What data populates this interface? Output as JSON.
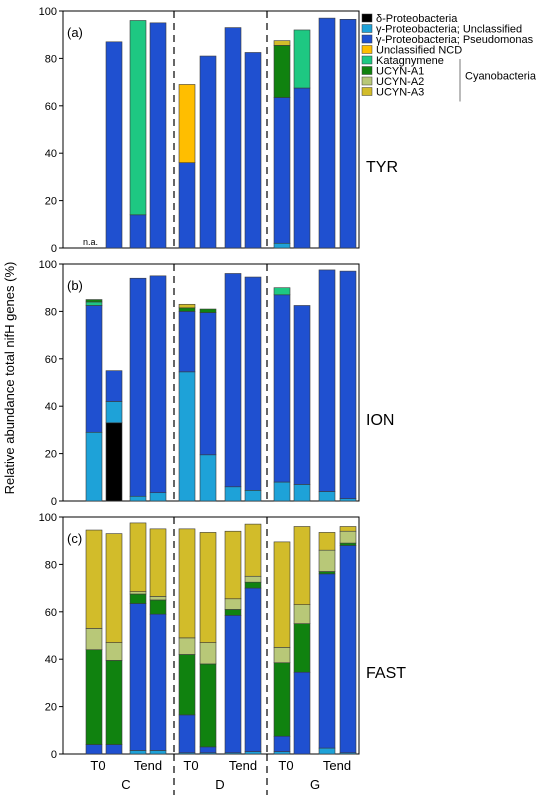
{
  "chart_data": {
    "type": "bar",
    "stacked": true,
    "ylabel": "Relative abundance total nifH genes (%)",
    "ylim": [
      0,
      100
    ],
    "yticks": [
      0,
      20,
      40,
      60,
      80,
      100
    ],
    "groups": [
      {
        "name": "C",
        "timepoints": [
          "T0",
          "Tend"
        ]
      },
      {
        "name": "D",
        "timepoints": [
          "T0",
          "Tend"
        ]
      },
      {
        "name": "G",
        "timepoints": [
          "T0",
          "Tend"
        ]
      }
    ],
    "bars_per_group": 4,
    "legend": {
      "items": [
        {
          "key": "delta",
          "label": "δ-Proteobacteria",
          "color": "#000000"
        },
        {
          "key": "gunc",
          "label": "γ-Proteobacteria; Unclassified",
          "color": "#1ea2d8"
        },
        {
          "key": "gpse",
          "label": "γ-Proteobacteria; Pseudomonas",
          "color": "#1f50d0"
        },
        {
          "key": "ncd",
          "label": "Unclassified NCD",
          "color": "#ffbe00"
        },
        {
          "key": "kata",
          "label": "Katagnymene",
          "color": "#1ec882"
        },
        {
          "key": "a1",
          "label": "UCYN-A1",
          "color": "#10820f"
        },
        {
          "key": "a2",
          "label": "UCYN-A2",
          "color": "#b8c878"
        },
        {
          "key": "a3",
          "label": "UCYN-A3",
          "color": "#d2bc2a"
        }
      ],
      "group_label": "Cyanobacteria"
    },
    "stack_order": [
      "delta",
      "gunc",
      "gpse",
      "ncd",
      "kata",
      "a1",
      "a2",
      "a3"
    ],
    "panels": [
      {
        "label": "(a)",
        "name": "TYR",
        "annotation": "n.a.",
        "bars": [
          {},
          {
            "gpse": 87
          },
          {
            "gpse": 14,
            "kata": 82
          },
          {
            "gpse": 95
          },
          {
            "gpse": 36,
            "ncd": 33
          },
          {
            "gpse": 81
          },
          {
            "gpse": 93
          },
          {
            "gpse": 82.5
          },
          {
            "gunc": 2,
            "gpse": 61.5,
            "a1": 22,
            "a3": 2
          },
          {
            "gpse": 67.5,
            "kata": 24.5
          },
          {
            "gpse": 97
          },
          {
            "gpse": 96.5
          }
        ]
      },
      {
        "label": "(b)",
        "name": "ION",
        "bars": [
          {
            "gunc": 29,
            "gpse": 53.5,
            "kata": 1.5,
            "a1": 1
          },
          {
            "delta": 33,
            "gunc": 9,
            "gpse": 13
          },
          {
            "gunc": 2,
            "gpse": 92
          },
          {
            "gunc": 3.5,
            "gpse": 91.5
          },
          {
            "gunc": 54.5,
            "gpse": 25.5,
            "a1": 1.5,
            "a3": 1.5
          },
          {
            "gunc": 19.5,
            "gpse": 60,
            "a1": 1.5
          },
          {
            "gunc": 6,
            "gpse": 90
          },
          {
            "gunc": 4.5,
            "gpse": 90
          },
          {
            "gunc": 8,
            "gpse": 79,
            "kata": 3
          },
          {
            "gunc": 7,
            "gpse": 75.5
          },
          {
            "gunc": 4,
            "gpse": 93.5
          },
          {
            "gunc": 1,
            "gpse": 96
          }
        ]
      },
      {
        "label": "(c)",
        "name": "FAST",
        "bars": [
          {
            "gpse": 4,
            "a1": 40,
            "a2": 9,
            "a3": 41.5
          },
          {
            "gpse": 4,
            "a1": 35.5,
            "a2": 7.5,
            "a3": 46
          },
          {
            "gunc": 1.5,
            "gpse": 62,
            "a1": 4,
            "a2": 1,
            "a3": 29
          },
          {
            "gunc": 1.5,
            "gpse": 57.5,
            "a1": 6,
            "a2": 1.5,
            "a3": 28.5
          },
          {
            "gunc": 0.5,
            "gpse": 16,
            "a1": 25.5,
            "a2": 7,
            "a3": 46
          },
          {
            "gunc": 0.5,
            "gpse": 2.5,
            "a1": 35,
            "a2": 9,
            "a3": 46.5
          },
          {
            "gunc": 0.5,
            "gpse": 58,
            "a1": 2.5,
            "a2": 4.5,
            "a3": 28.5
          },
          {
            "gunc": 1,
            "gpse": 69,
            "a1": 2.5,
            "a2": 2.5,
            "a3": 22
          },
          {
            "gunc": 1,
            "gpse": 6.5,
            "a1": 31,
            "a2": 6.5,
            "a3": 44.5
          },
          {
            "gpse": 34.5,
            "a1": 20.5,
            "a2": 8,
            "a3": 33
          },
          {
            "gunc": 2.5,
            "gpse": 73.5,
            "a1": 1,
            "a2": 9,
            "a3": 7.5
          },
          {
            "gunc": 0.5,
            "gpse": 87.5,
            "a1": 1,
            "a2": 5,
            "a3": 2
          }
        ]
      }
    ]
  }
}
